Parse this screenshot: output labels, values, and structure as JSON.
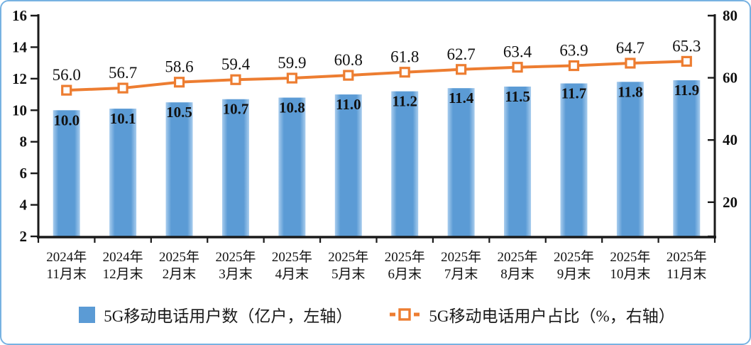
{
  "chart_data": {
    "type": "combo",
    "title": "",
    "categories": [
      {
        "top": "2024年",
        "bottom": "11月末"
      },
      {
        "top": "2024年",
        "bottom": "12月末"
      },
      {
        "top": "2025年",
        "bottom": "2月末"
      },
      {
        "top": "2025年",
        "bottom": "3月末"
      },
      {
        "top": "2025年",
        "bottom": "4月末"
      },
      {
        "top": "2025年",
        "bottom": "5月末"
      },
      {
        "top": "2025年",
        "bottom": "6月末"
      },
      {
        "top": "2025年",
        "bottom": "7月末"
      },
      {
        "top": "2025年",
        "bottom": "8月末"
      },
      {
        "top": "2025年",
        "bottom": "9月末"
      },
      {
        "top": "2025年",
        "bottom": "10月末"
      },
      {
        "top": "2025年",
        "bottom": "11月末"
      }
    ],
    "series": [
      {
        "name": "5G移动电话用户数（亿户，左轴）",
        "type": "bar",
        "axis": "left",
        "color": "#5B9BD5",
        "color_edge": "#A9CDEE",
        "values": [
          10.0,
          10.1,
          10.5,
          10.7,
          10.8,
          11.0,
          11.2,
          11.4,
          11.5,
          11.7,
          11.8,
          11.9
        ]
      },
      {
        "name": "5G移动电话用户占比（%，右轴）",
        "type": "line",
        "axis": "right",
        "color": "#ED7D31",
        "marker": "hollow-square",
        "values": [
          56.0,
          56.7,
          58.6,
          59.4,
          59.9,
          60.8,
          61.8,
          62.7,
          63.4,
          63.9,
          64.7,
          65.3
        ]
      }
    ],
    "left_axis": {
      "min": 2,
      "max": 16,
      "ticks": [
        2,
        4,
        6,
        8,
        10,
        12,
        14,
        16
      ]
    },
    "right_axis": {
      "min": 9,
      "max": 80,
      "ticks": [
        20,
        40,
        60,
        80
      ]
    },
    "grid": false,
    "legend_position": "bottom",
    "axis_color": "#1a1a1a",
    "label_color": "#111111"
  },
  "frame": {
    "border_color": "#77B2E2",
    "background": "#FFFFFF"
  }
}
